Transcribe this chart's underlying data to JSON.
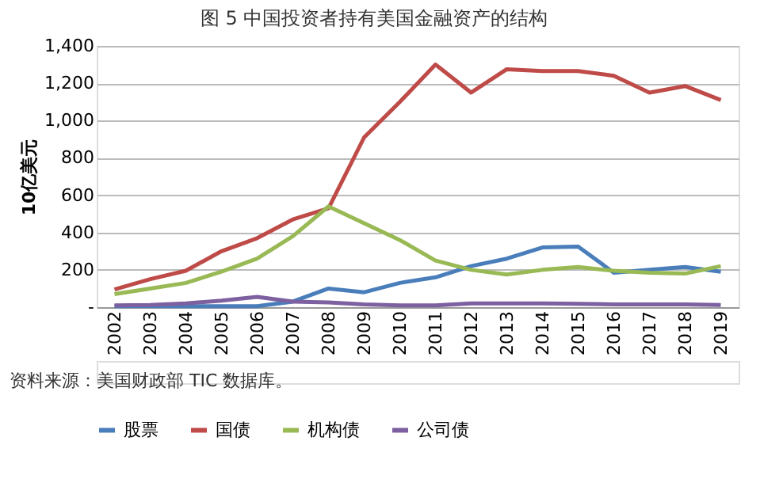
{
  "chart_data": {
    "type": "line",
    "title": "图 5  中国投资者持有美国金融资产的结构",
    "ylabel": "10亿美元",
    "annotations": [
      "资料来源：美国财政部 TIC 数据库。"
    ],
    "categories": [
      "2002",
      "2003",
      "2004",
      "2005",
      "2006",
      "2007",
      "2008",
      "2009",
      "2010",
      "2011",
      "2012",
      "2013",
      "2014",
      "2015",
      "2016",
      "2017",
      "2018",
      "2019"
    ],
    "series": [
      {
        "name": "股票",
        "color": "#4a7ebb",
        "values": [
          5,
          5,
          5,
          5,
          5,
          30,
          100,
          80,
          130,
          160,
          220,
          260,
          320,
          325,
          185,
          200,
          215,
          190
        ]
      },
      {
        "name": "国债",
        "color": "#be4b48",
        "values": [
          95,
          150,
          195,
          300,
          370,
          470,
          530,
          910,
          1100,
          1300,
          1150,
          1275,
          1265,
          1265,
          1240,
          1150,
          1185,
          1110
        ]
      },
      {
        "name": "机构债",
        "color": "#98b954",
        "values": [
          70,
          100,
          130,
          190,
          260,
          380,
          540,
          450,
          360,
          250,
          200,
          175,
          200,
          215,
          195,
          185,
          180,
          220
        ]
      },
      {
        "name": "公司债",
        "color": "#7d60a0",
        "values": [
          10,
          12,
          20,
          35,
          55,
          30,
          25,
          15,
          10,
          10,
          20,
          20,
          20,
          18,
          15,
          15,
          15,
          12
        ]
      }
    ],
    "ylim": [
      0,
      1400
    ],
    "yticks": [
      {
        "value": 0,
        "label": "-"
      },
      {
        "value": 200,
        "label": "200"
      },
      {
        "value": 400,
        "label": "400"
      },
      {
        "value": 600,
        "label": "600"
      },
      {
        "value": 800,
        "label": "800"
      },
      {
        "value": 1000,
        "label": "1,000"
      },
      {
        "value": 1200,
        "label": "1,200"
      },
      {
        "value": 1400,
        "label": "1,400"
      }
    ],
    "grid": "y",
    "legend": "bottom",
    "marker": "none",
    "line_style": "solid"
  }
}
